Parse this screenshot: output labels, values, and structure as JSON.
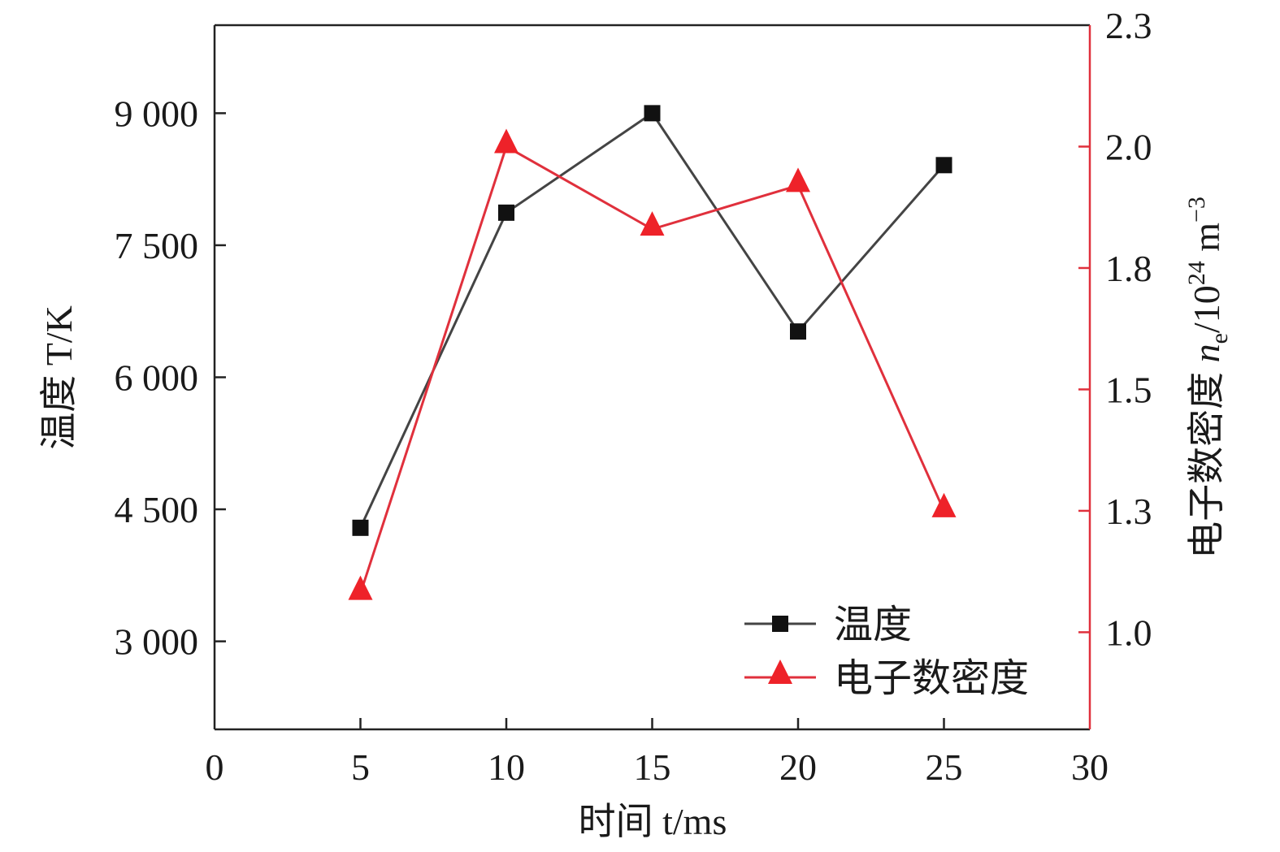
{
  "chart_data": {
    "type": "line",
    "title": "",
    "xlabel": "时间 t/ms",
    "xlabel_parts": {
      "prefix": "时间 ",
      "var": "t",
      "unit": "/ms"
    },
    "ylabel_left": "温度 T/K",
    "ylabel_left_parts": {
      "prefix": "温度 ",
      "var": "T",
      "unit": "/K"
    },
    "ylabel_right": "电子数密度 n_e/10^24 m^-3",
    "ylabel_right_parts": {
      "prefix": "电子数密度 ",
      "var": "n",
      "sub": "e",
      "mid": "/10",
      "sup1": "24",
      "unit": " m",
      "sup2": "−3"
    },
    "xlim": [
      0,
      30
    ],
    "ylim_left": [
      2000,
      10000
    ],
    "ylim_right": [
      0.8,
      2.25
    ],
    "x_ticks": [
      0,
      5,
      10,
      15,
      20,
      25,
      30
    ],
    "x_tick_labels": [
      "0",
      "5",
      "10",
      "15",
      "20",
      "25",
      "30"
    ],
    "y_left_ticks": [
      3000,
      4500,
      6000,
      7500,
      9000
    ],
    "y_left_tick_labels": [
      "3 000",
      "4 500",
      "6 000",
      "7 500",
      "9 000"
    ],
    "y_right_ticks": [
      1.0,
      1.25,
      1.5,
      1.75,
      2.0,
      2.25
    ],
    "y_right_tick_labels": [
      "1.0",
      "1.3",
      "1.5",
      "1.8",
      "2.0",
      "2.3"
    ],
    "grid": false,
    "legend_position": "bottom-right",
    "x": [
      5,
      10,
      15,
      20,
      25
    ],
    "series": [
      {
        "name": "温度",
        "axis": "left",
        "marker": "square",
        "color": "#444444",
        "marker_color": "#111111",
        "values": [
          4290,
          7870,
          9000,
          6520,
          8410
        ]
      },
      {
        "name": "电子数密度",
        "axis": "right",
        "marker": "triangle",
        "color": "#e0303c",
        "marker_color": "#ee2229",
        "values": [
          1.08,
          2.0,
          1.83,
          1.92,
          1.25
        ]
      }
    ],
    "right_axis_color": "#e0303c"
  }
}
